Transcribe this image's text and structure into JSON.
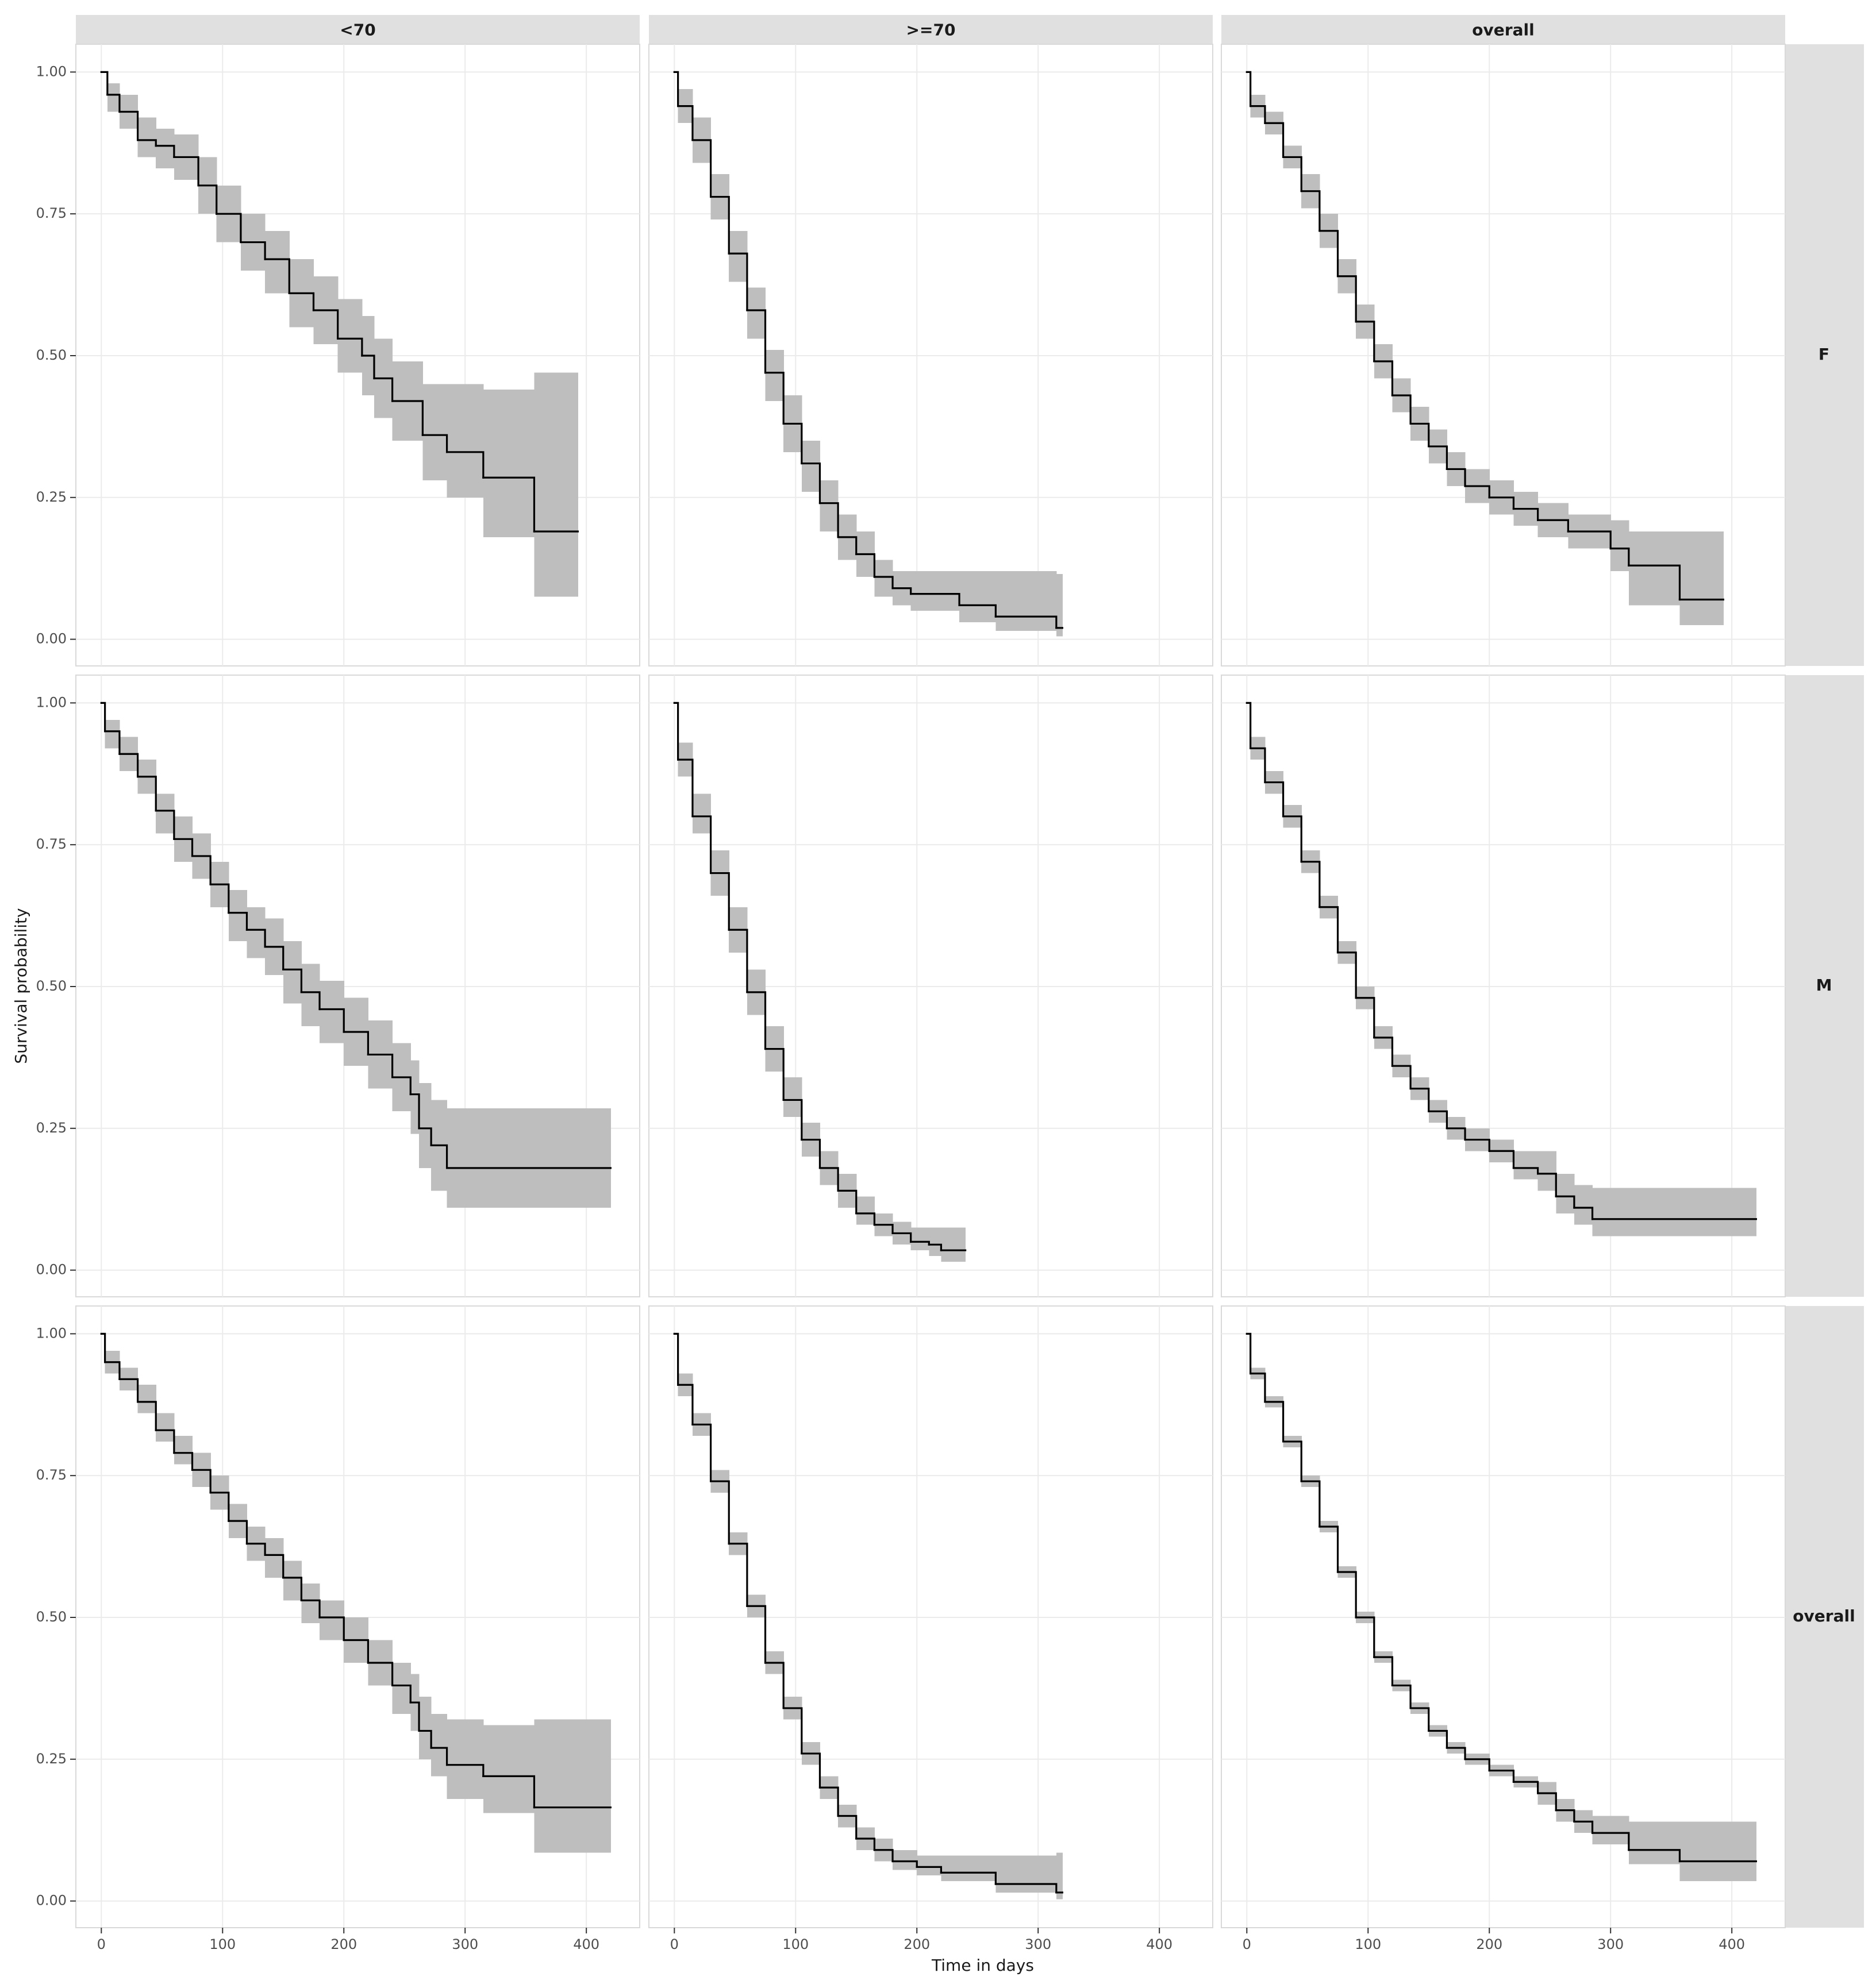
{
  "chart_data": {
    "type": "survival-facets",
    "x_label": "Time in days",
    "y_label": "Survival probability",
    "columns": [
      "<70",
      ">=70",
      "overall"
    ],
    "rows": [
      "F",
      "M",
      "overall"
    ],
    "xlim": [
      -21,
      444
    ],
    "ylim": [
      -0.047,
      1.049
    ],
    "xticks": [
      0,
      100,
      200,
      300,
      400
    ],
    "yticks": [
      {
        "value": 0,
        "label": "0.00"
      },
      {
        "value": 0.25,
        "label": "0.25"
      },
      {
        "value": 0.5,
        "label": "0.50"
      },
      {
        "value": 0.75,
        "label": "0.75"
      },
      {
        "value": 1,
        "label": "1.00"
      }
    ],
    "grid": true,
    "line_color": "#000000",
    "band_color": "#bebebe",
    "facets": [
      [
        {
          "x": [
            0,
            5,
            15,
            30,
            45,
            60,
            80,
            95,
            115,
            135,
            155,
            175,
            195,
            215,
            225,
            240,
            265,
            285,
            315,
            357,
            393
          ],
          "values": [
            1,
            0.96,
            0.93,
            0.88,
            0.87,
            0.85,
            0.8,
            0.75,
            0.7,
            0.67,
            0.61,
            0.58,
            0.53,
            0.5,
            0.46,
            0.42,
            0.36,
            0.33,
            0.285,
            0.19,
            0.19
          ],
          "lower": [
            1,
            0.93,
            0.9,
            0.85,
            0.83,
            0.81,
            0.75,
            0.7,
            0.65,
            0.61,
            0.55,
            0.52,
            0.47,
            0.43,
            0.39,
            0.35,
            0.28,
            0.25,
            0.18,
            0.075,
            0.075
          ],
          "upper": [
            1,
            0.98,
            0.96,
            0.92,
            0.9,
            0.89,
            0.85,
            0.8,
            0.75,
            0.72,
            0.67,
            0.64,
            0.6,
            0.57,
            0.53,
            0.49,
            0.45,
            0.45,
            0.44,
            0.47,
            0.47
          ]
        },
        {
          "x": [
            0,
            3,
            15,
            30,
            45,
            60,
            75,
            90,
            105,
            120,
            135,
            150,
            165,
            180,
            195,
            235,
            265,
            315,
            320
          ],
          "values": [
            1,
            0.94,
            0.88,
            0.78,
            0.68,
            0.58,
            0.47,
            0.38,
            0.31,
            0.24,
            0.18,
            0.15,
            0.11,
            0.09,
            0.08,
            0.06,
            0.04,
            0.02,
            0.02
          ],
          "lower": [
            1,
            0.91,
            0.84,
            0.74,
            0.63,
            0.53,
            0.42,
            0.33,
            0.26,
            0.19,
            0.14,
            0.11,
            0.075,
            0.06,
            0.05,
            0.03,
            0.015,
            0.005,
            0.005
          ],
          "upper": [
            1,
            0.97,
            0.92,
            0.82,
            0.72,
            0.62,
            0.51,
            0.43,
            0.35,
            0.28,
            0.22,
            0.19,
            0.14,
            0.12,
            0.12,
            0.12,
            0.12,
            0.115,
            0.115
          ]
        },
        {
          "x": [
            0,
            3,
            15,
            30,
            45,
            60,
            75,
            90,
            105,
            120,
            135,
            150,
            165,
            180,
            200,
            220,
            240,
            265,
            300,
            315,
            357,
            393
          ],
          "values": [
            1,
            0.94,
            0.91,
            0.85,
            0.79,
            0.72,
            0.64,
            0.56,
            0.49,
            0.43,
            0.38,
            0.34,
            0.3,
            0.27,
            0.25,
            0.23,
            0.21,
            0.19,
            0.16,
            0.13,
            0.07,
            0.07
          ],
          "lower": [
            1,
            0.92,
            0.89,
            0.83,
            0.76,
            0.69,
            0.61,
            0.53,
            0.46,
            0.4,
            0.35,
            0.31,
            0.27,
            0.24,
            0.22,
            0.2,
            0.18,
            0.16,
            0.12,
            0.06,
            0.025,
            0.025
          ],
          "upper": [
            1,
            0.96,
            0.93,
            0.87,
            0.82,
            0.75,
            0.67,
            0.59,
            0.52,
            0.46,
            0.41,
            0.37,
            0.33,
            0.3,
            0.28,
            0.26,
            0.24,
            0.22,
            0.21,
            0.19,
            0.19,
            0.19
          ]
        }
      ],
      [
        {
          "x": [
            0,
            3,
            15,
            30,
            45,
            60,
            75,
            90,
            105,
            120,
            135,
            150,
            165,
            180,
            200,
            220,
            240,
            255,
            262,
            272,
            285,
            420
          ],
          "values": [
            1,
            0.95,
            0.91,
            0.87,
            0.81,
            0.76,
            0.73,
            0.68,
            0.63,
            0.6,
            0.57,
            0.53,
            0.49,
            0.46,
            0.42,
            0.38,
            0.34,
            0.31,
            0.25,
            0.22,
            0.18,
            0.18
          ],
          "lower": [
            1,
            0.92,
            0.88,
            0.84,
            0.77,
            0.72,
            0.69,
            0.64,
            0.58,
            0.55,
            0.52,
            0.47,
            0.43,
            0.4,
            0.36,
            0.32,
            0.28,
            0.24,
            0.18,
            0.14,
            0.11,
            0.11
          ],
          "upper": [
            1,
            0.97,
            0.94,
            0.9,
            0.84,
            0.8,
            0.77,
            0.72,
            0.67,
            0.64,
            0.62,
            0.58,
            0.54,
            0.51,
            0.48,
            0.44,
            0.4,
            0.37,
            0.33,
            0.3,
            0.285,
            0.285
          ]
        },
        {
          "x": [
            0,
            3,
            15,
            30,
            45,
            60,
            75,
            90,
            105,
            120,
            135,
            150,
            165,
            180,
            195,
            210,
            220,
            240
          ],
          "values": [
            1,
            0.9,
            0.8,
            0.7,
            0.6,
            0.49,
            0.39,
            0.3,
            0.23,
            0.18,
            0.14,
            0.1,
            0.08,
            0.065,
            0.05,
            0.045,
            0.035,
            0.035
          ],
          "lower": [
            1,
            0.87,
            0.77,
            0.66,
            0.56,
            0.45,
            0.35,
            0.27,
            0.2,
            0.15,
            0.11,
            0.08,
            0.06,
            0.045,
            0.035,
            0.025,
            0.015,
            0.015
          ],
          "upper": [
            1,
            0.93,
            0.84,
            0.74,
            0.64,
            0.53,
            0.43,
            0.34,
            0.26,
            0.21,
            0.17,
            0.13,
            0.1,
            0.085,
            0.075,
            0.075,
            0.075,
            0.075
          ]
        },
        {
          "x": [
            0,
            3,
            15,
            30,
            45,
            60,
            75,
            90,
            105,
            120,
            135,
            150,
            165,
            180,
            200,
            220,
            240,
            255,
            270,
            285,
            420
          ],
          "values": [
            1,
            0.92,
            0.86,
            0.8,
            0.72,
            0.64,
            0.56,
            0.48,
            0.41,
            0.36,
            0.32,
            0.28,
            0.25,
            0.23,
            0.21,
            0.18,
            0.17,
            0.13,
            0.11,
            0.09,
            0.09
          ],
          "lower": [
            1,
            0.9,
            0.84,
            0.78,
            0.7,
            0.62,
            0.54,
            0.46,
            0.39,
            0.34,
            0.3,
            0.26,
            0.23,
            0.21,
            0.19,
            0.16,
            0.14,
            0.1,
            0.08,
            0.06,
            0.06
          ],
          "upper": [
            1,
            0.94,
            0.88,
            0.82,
            0.74,
            0.66,
            0.58,
            0.5,
            0.43,
            0.38,
            0.34,
            0.3,
            0.27,
            0.25,
            0.23,
            0.21,
            0.21,
            0.17,
            0.15,
            0.145,
            0.145
          ]
        }
      ],
      [
        {
          "x": [
            0,
            3,
            15,
            30,
            45,
            60,
            75,
            90,
            105,
            120,
            135,
            150,
            165,
            180,
            200,
            220,
            240,
            255,
            262,
            272,
            285,
            315,
            357,
            420
          ],
          "values": [
            1,
            0.95,
            0.92,
            0.88,
            0.83,
            0.79,
            0.76,
            0.72,
            0.67,
            0.63,
            0.61,
            0.57,
            0.53,
            0.5,
            0.46,
            0.42,
            0.38,
            0.35,
            0.3,
            0.27,
            0.24,
            0.22,
            0.165,
            0.165
          ],
          "lower": [
            1,
            0.93,
            0.9,
            0.86,
            0.81,
            0.77,
            0.73,
            0.69,
            0.64,
            0.6,
            0.57,
            0.53,
            0.49,
            0.46,
            0.42,
            0.38,
            0.33,
            0.3,
            0.25,
            0.22,
            0.18,
            0.155,
            0.085,
            0.085
          ],
          "upper": [
            1,
            0.97,
            0.94,
            0.91,
            0.86,
            0.82,
            0.79,
            0.75,
            0.7,
            0.66,
            0.64,
            0.6,
            0.56,
            0.53,
            0.5,
            0.46,
            0.42,
            0.4,
            0.36,
            0.33,
            0.32,
            0.31,
            0.32,
            0.32
          ]
        },
        {
          "x": [
            0,
            3,
            15,
            30,
            45,
            60,
            75,
            90,
            105,
            120,
            135,
            150,
            165,
            180,
            200,
            220,
            265,
            315,
            320
          ],
          "values": [
            1,
            0.91,
            0.84,
            0.74,
            0.63,
            0.52,
            0.42,
            0.34,
            0.26,
            0.2,
            0.15,
            0.11,
            0.09,
            0.07,
            0.06,
            0.05,
            0.03,
            0.015,
            0.015
          ],
          "lower": [
            1,
            0.89,
            0.82,
            0.72,
            0.61,
            0.5,
            0.4,
            0.32,
            0.24,
            0.18,
            0.13,
            0.09,
            0.07,
            0.055,
            0.045,
            0.035,
            0.015,
            0.003,
            0.003
          ],
          "upper": [
            1,
            0.93,
            0.86,
            0.76,
            0.65,
            0.54,
            0.44,
            0.36,
            0.28,
            0.22,
            0.17,
            0.13,
            0.11,
            0.09,
            0.08,
            0.08,
            0.08,
            0.085,
            0.085
          ]
        },
        {
          "x": [
            0,
            3,
            15,
            30,
            45,
            60,
            75,
            90,
            105,
            120,
            135,
            150,
            165,
            180,
            200,
            220,
            240,
            255,
            270,
            285,
            315,
            357,
            420
          ],
          "values": [
            1,
            0.93,
            0.88,
            0.81,
            0.74,
            0.66,
            0.58,
            0.5,
            0.43,
            0.38,
            0.34,
            0.3,
            0.27,
            0.25,
            0.23,
            0.21,
            0.19,
            0.16,
            0.14,
            0.12,
            0.09,
            0.07,
            0.07
          ],
          "lower": [
            1,
            0.92,
            0.87,
            0.8,
            0.73,
            0.65,
            0.57,
            0.49,
            0.42,
            0.37,
            0.33,
            0.29,
            0.26,
            0.24,
            0.22,
            0.2,
            0.17,
            0.14,
            0.12,
            0.1,
            0.065,
            0.035,
            0.035
          ],
          "upper": [
            1,
            0.94,
            0.89,
            0.82,
            0.75,
            0.67,
            0.59,
            0.51,
            0.44,
            0.39,
            0.35,
            0.31,
            0.28,
            0.26,
            0.24,
            0.22,
            0.21,
            0.18,
            0.16,
            0.15,
            0.14,
            0.14,
            0.14
          ]
        }
      ]
    ]
  }
}
